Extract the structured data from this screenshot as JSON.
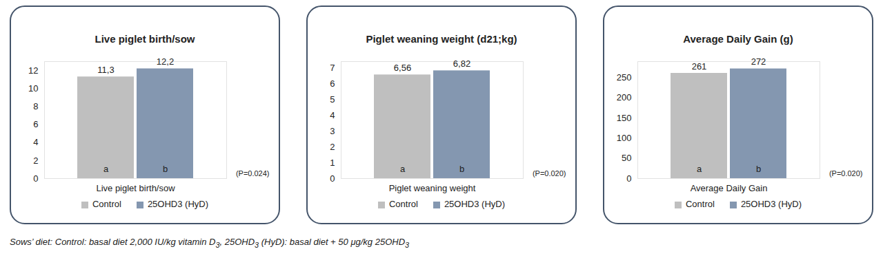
{
  "chart_data": [
    {
      "type": "bar",
      "title": "Live piglet birth/sow",
      "categories": [
        "Live piglet birth/sow"
      ],
      "series": [
        {
          "name": "Control",
          "color": "#bfbfbf",
          "values": [
            11.3
          ],
          "value_labels": [
            "11,3"
          ],
          "letters": [
            "a"
          ]
        },
        {
          "name": "25OHD3 (HyD)",
          "color": "#8497b0",
          "values": [
            12.2
          ],
          "value_labels": [
            "12,2"
          ],
          "letters": [
            "b"
          ]
        }
      ],
      "annotation": "(P=0.024)",
      "ylim": [
        0,
        13
      ],
      "yticks": [
        0,
        2,
        4,
        6,
        8,
        10,
        12
      ],
      "grid": false,
      "data_labels": true,
      "legend": "bottom"
    },
    {
      "type": "bar",
      "title": "Piglet weaning weight (d21;kg)",
      "categories": [
        "Piglet weaning weight"
      ],
      "series": [
        {
          "name": "Control",
          "color": "#bfbfbf",
          "values": [
            6.56
          ],
          "value_labels": [
            "6,56"
          ],
          "letters": [
            "a"
          ]
        },
        {
          "name": "25OHD3 (HyD)",
          "color": "#8497b0",
          "values": [
            6.82
          ],
          "value_labels": [
            "6,82"
          ],
          "letters": [
            "b"
          ]
        }
      ],
      "annotation": "(P=0.020)",
      "ylim": [
        0,
        7.4
      ],
      "yticks": [
        0,
        1,
        2,
        3,
        4,
        5,
        6,
        7
      ],
      "grid": false,
      "data_labels": true,
      "legend": "bottom"
    },
    {
      "type": "bar",
      "title": "Average Daily Gain (g)",
      "categories": [
        "Average Daily Gain"
      ],
      "series": [
        {
          "name": "Control",
          "color": "#bfbfbf",
          "values": [
            261
          ],
          "letters": [
            "a"
          ]
        },
        {
          "name": "25OHD3 (HyD)",
          "color": "#8497b0",
          "values": [
            272
          ],
          "letters": [
            "b"
          ]
        }
      ],
      "annotation": "(P=0.020)",
      "ylim": [
        0,
        290
      ],
      "yticks": [
        0,
        50,
        100,
        150,
        200,
        250
      ],
      "grid": false,
      "data_labels": true,
      "legend": "bottom"
    }
  ],
  "caption": "Sows’ diet: Control: basal diet 2,000 IU/kg vitamin D3, 25OHD3 (HyD): basal diet + 50 μg/kg 25OHD3"
}
